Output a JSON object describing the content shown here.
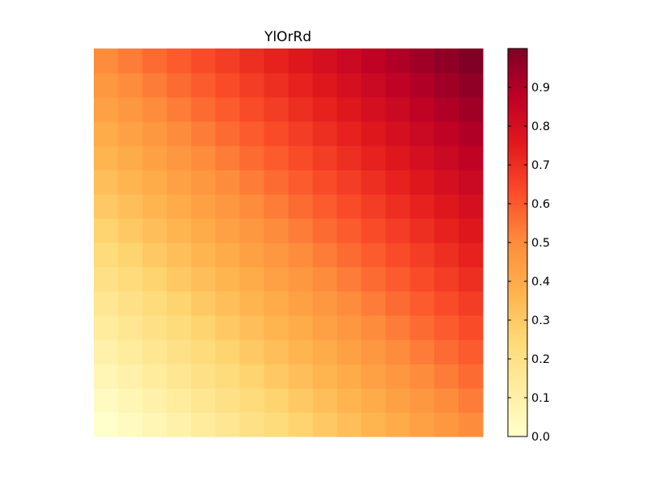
{
  "chart_data": {
    "type": "heatmap",
    "title": "YlOrRd",
    "colormap": "YlOrRd",
    "rows": 16,
    "cols": 16,
    "value_function": "(col/(cols-1) + row/(rows-1)) / 2, row counted from the bottom",
    "value_range": [
      0.0,
      1.0
    ],
    "axes_visible": false,
    "colorbar": {
      "orientation": "vertical",
      "position": "right",
      "range": [
        0.0,
        1.0
      ],
      "ticks": [
        "0.0",
        "0.1",
        "0.2",
        "0.3",
        "0.4",
        "0.5",
        "0.6",
        "0.7",
        "0.8",
        "0.9"
      ],
      "tick_values": [
        0.0,
        0.1,
        0.2,
        0.3,
        0.4,
        0.5,
        0.6,
        0.7,
        0.8,
        0.9
      ]
    },
    "colormap_stops": [
      "#ffffcc",
      "#ffeda0",
      "#fed976",
      "#feb24c",
      "#fd8d3c",
      "#fc4e2a",
      "#e31a1c",
      "#bd0026",
      "#800026"
    ]
  }
}
